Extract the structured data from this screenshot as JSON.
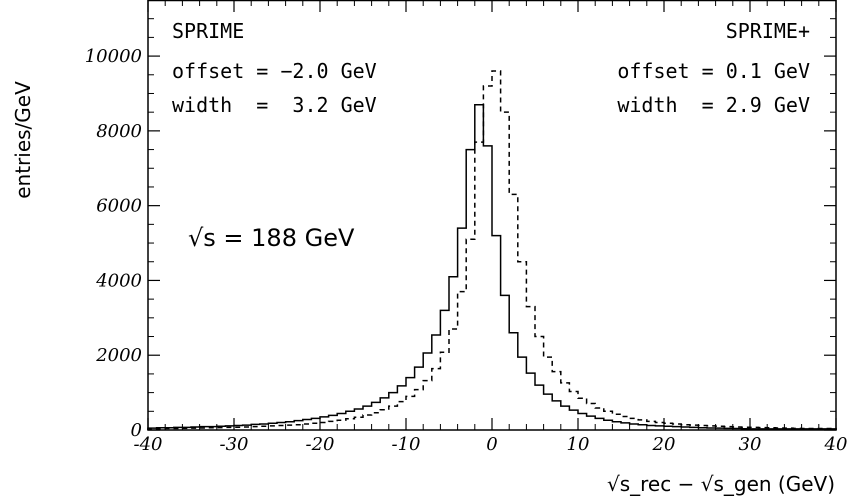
{
  "chart_data": {
    "type": "line",
    "title": "",
    "xlabel": "√s_rec − √s_gen (GeV)",
    "ylabel": "entries/GeV",
    "xlim": [
      -40,
      40
    ],
    "ylim": [
      0,
      11500
    ],
    "x_ticks": [
      "-40",
      "-30",
      "-20",
      "-10",
      "0",
      "10",
      "20",
      "30",
      "40"
    ],
    "y_ticks": [
      "0",
      "2000",
      "4000",
      "6000",
      "8000",
      "10000"
    ],
    "grid": false,
    "bin_edges": [
      -40,
      -39,
      -38,
      -37,
      -36,
      -35,
      -34,
      -33,
      -32,
      -31,
      -30,
      -29,
      -28,
      -27,
      -26,
      -25,
      -24,
      -23,
      -22,
      -21,
      -20,
      -19,
      -18,
      -17,
      -16,
      -15,
      -14,
      -13,
      -12,
      -11,
      -10,
      -9,
      -8,
      -7,
      -6,
      -5,
      -4,
      -3,
      -2,
      -1,
      0,
      1,
      2,
      3,
      4,
      5,
      6,
      7,
      8,
      9,
      10,
      11,
      12,
      13,
      14,
      15,
      16,
      17,
      18,
      19,
      20,
      21,
      22,
      23,
      24,
      25,
      26,
      27,
      28,
      29,
      30,
      31,
      32,
      33,
      34,
      35,
      36,
      37,
      38,
      39,
      40
    ],
    "series": [
      {
        "name": "SPRIME",
        "style": "solid",
        "color": "#000000",
        "values": [
          50,
          60,
          60,
          70,
          70,
          80,
          90,
          90,
          100,
          110,
          120,
          130,
          150,
          160,
          180,
          200,
          220,
          250,
          280,
          310,
          350,
          390,
          440,
          500,
          560,
          640,
          740,
          860,
          1000,
          1180,
          1400,
          1680,
          2060,
          2540,
          3200,
          4100,
          5400,
          7500,
          8700,
          7600,
          5200,
          3600,
          2600,
          1950,
          1520,
          1200,
          960,
          780,
          640,
          530,
          440,
          370,
          310,
          260,
          220,
          190,
          160,
          140,
          120,
          110,
          100,
          90,
          80,
          70,
          60,
          55,
          50,
          45,
          40,
          35,
          30,
          30,
          30,
          30,
          30,
          30,
          30,
          30,
          30,
          30
        ]
      },
      {
        "name": "SPRIME+",
        "style": "dashed",
        "color": "#000000",
        "values": [
          30,
          35,
          40,
          40,
          45,
          50,
          55,
          60,
          65,
          70,
          75,
          80,
          90,
          100,
          110,
          120,
          130,
          140,
          160,
          180,
          200,
          230,
          260,
          300,
          340,
          400,
          460,
          540,
          640,
          760,
          900,
          1080,
          1320,
          1640,
          2080,
          2700,
          3700,
          5100,
          7700,
          9200,
          9600,
          8500,
          6300,
          4500,
          3300,
          2500,
          1950,
          1560,
          1260,
          1030,
          850,
          710,
          590,
          500,
          420,
          360,
          310,
          270,
          230,
          200,
          180,
          160,
          140,
          130,
          120,
          110,
          100,
          90,
          80,
          75,
          70,
          65,
          60,
          55,
          50,
          45,
          40,
          40,
          40,
          40
        ]
      }
    ],
    "annotations": {
      "left_name": "SPRIME",
      "left_offset": "offset = −2.0 GeV",
      "left_width": "width  =  3.2 GeV",
      "right_name": "SPRIME+",
      "right_offset": "offset = 0.1 GeV",
      "right_width": "width  = 2.9 GeV",
      "energy": "√s = 188 GeV"
    }
  }
}
